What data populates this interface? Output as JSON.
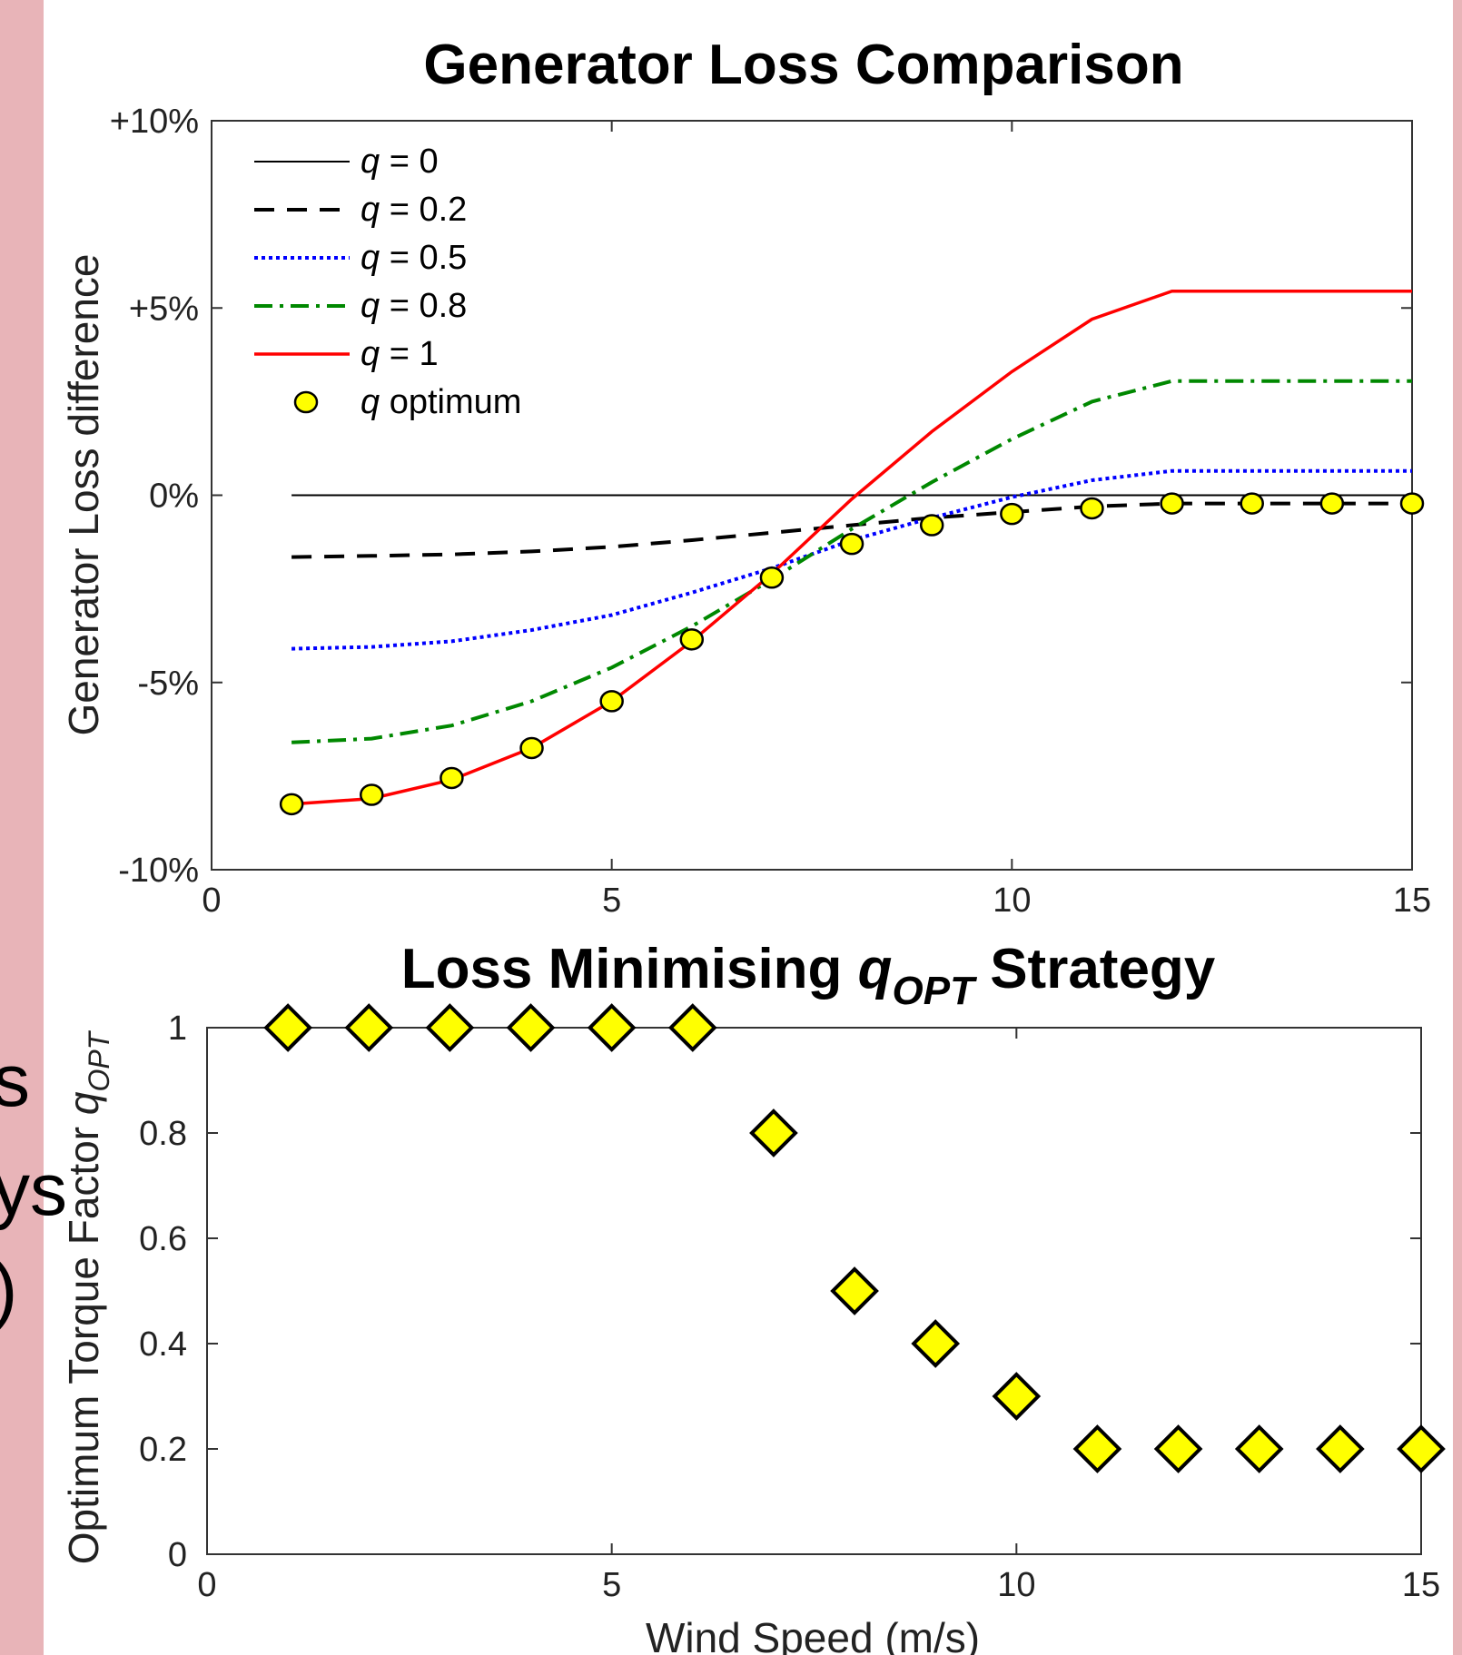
{
  "side_fragments": [
    "s",
    "ys",
    ")"
  ],
  "chart_data": [
    {
      "type": "line",
      "title": "Generator Loss Comparison",
      "xlabel": "",
      "ylabel": "Generator Loss difference",
      "xlim": [
        0,
        15
      ],
      "ylim": [
        -10,
        10
      ],
      "xticks": [
        0,
        5,
        10,
        15
      ],
      "yticks": [
        {
          "value": 10,
          "label": "+10%"
        },
        {
          "value": 5,
          "label": "+5%"
        },
        {
          "value": 0,
          "label": "0%"
        },
        {
          "value": -5,
          "label": "-5%"
        },
        {
          "value": -10,
          "label": "-10%"
        }
      ],
      "grid": false,
      "legend_position": "top-left",
      "series": [
        {
          "name": "q = 0",
          "style": "solid",
          "color": "#000000",
          "x": [
            1,
            15
          ],
          "y": [
            0,
            0
          ]
        },
        {
          "name": "q = 0.2",
          "style": "dashed",
          "color": "#000000",
          "x": [
            1,
            2,
            3,
            4,
            5,
            6,
            7,
            8,
            9,
            10,
            11,
            12,
            13,
            14,
            15
          ],
          "y": [
            -1.65,
            -1.62,
            -1.58,
            -1.5,
            -1.38,
            -1.2,
            -1.0,
            -0.8,
            -0.6,
            -0.45,
            -0.3,
            -0.22,
            -0.22,
            -0.22,
            -0.22
          ]
        },
        {
          "name": "q = 0.5",
          "style": "dotted",
          "color": "#0000ff",
          "x": [
            1,
            2,
            3,
            4,
            5,
            6,
            7,
            8,
            9,
            10,
            11,
            12,
            13,
            14,
            15
          ],
          "y": [
            -4.1,
            -4.05,
            -3.9,
            -3.6,
            -3.2,
            -2.6,
            -1.95,
            -1.2,
            -0.6,
            -0.05,
            0.4,
            0.65,
            0.65,
            0.65,
            0.65
          ]
        },
        {
          "name": "q = 0.8",
          "style": "dashdot",
          "color": "#008800",
          "x": [
            1,
            2,
            3,
            4,
            5,
            6,
            7,
            8,
            9,
            10,
            11,
            12,
            13,
            14,
            15
          ],
          "y": [
            -6.6,
            -6.5,
            -6.15,
            -5.5,
            -4.6,
            -3.5,
            -2.25,
            -0.9,
            0.35,
            1.5,
            2.5,
            3.05,
            3.05,
            3.05,
            3.05
          ]
        },
        {
          "name": "q = 1",
          "style": "solid",
          "color": "#ff0000",
          "x": [
            1,
            2,
            3,
            4,
            5,
            6,
            7,
            8,
            9,
            10,
            11,
            12,
            13,
            14,
            15
          ],
          "y": [
            -8.25,
            -8.1,
            -7.6,
            -6.75,
            -5.5,
            -3.9,
            -2.1,
            -0.1,
            1.7,
            3.3,
            4.7,
            5.45,
            5.45,
            5.45,
            5.45
          ]
        },
        {
          "name": "q optimum",
          "style": "markers",
          "color": "#ffff00",
          "x": [
            1,
            2,
            3,
            4,
            5,
            6,
            7,
            8,
            9,
            10,
            11,
            12,
            13,
            14,
            15
          ],
          "y": [
            -8.25,
            -8.0,
            -7.55,
            -6.75,
            -5.5,
            -3.85,
            -2.2,
            -1.3,
            -0.8,
            -0.5,
            -0.35,
            -0.22,
            -0.22,
            -0.22,
            -0.22
          ]
        }
      ]
    },
    {
      "type": "scatter",
      "title_main": "Loss Minimising ",
      "title_q": "q",
      "title_sub": "OPT",
      "title_end": " Strategy",
      "xlabel": "Wind Speed (m/s)",
      "ylabel_main": "Optimum Torque Factor ",
      "ylabel_q": "q",
      "ylabel_sub": "OPT",
      "xlim": [
        0,
        15
      ],
      "ylim": [
        0,
        1
      ],
      "xticks": [
        0,
        5,
        10,
        15
      ],
      "yticks": [
        {
          "value": 0,
          "label": "0"
        },
        {
          "value": 0.2,
          "label": "0.2"
        },
        {
          "value": 0.4,
          "label": "0.4"
        },
        {
          "value": 0.6,
          "label": "0.6"
        },
        {
          "value": 0.8,
          "label": "0.8"
        },
        {
          "value": 1,
          "label": "1"
        }
      ],
      "marker": "diamond",
      "marker_color": "#ffff00",
      "x": [
        1,
        2,
        3,
        4,
        5,
        6,
        7,
        8,
        9,
        10,
        11,
        12,
        13,
        14,
        15
      ],
      "y": [
        1,
        1,
        1,
        1,
        1,
        1,
        0.8,
        0.5,
        0.4,
        0.3,
        0.2,
        0.2,
        0.2,
        0.2,
        0.2
      ]
    }
  ]
}
